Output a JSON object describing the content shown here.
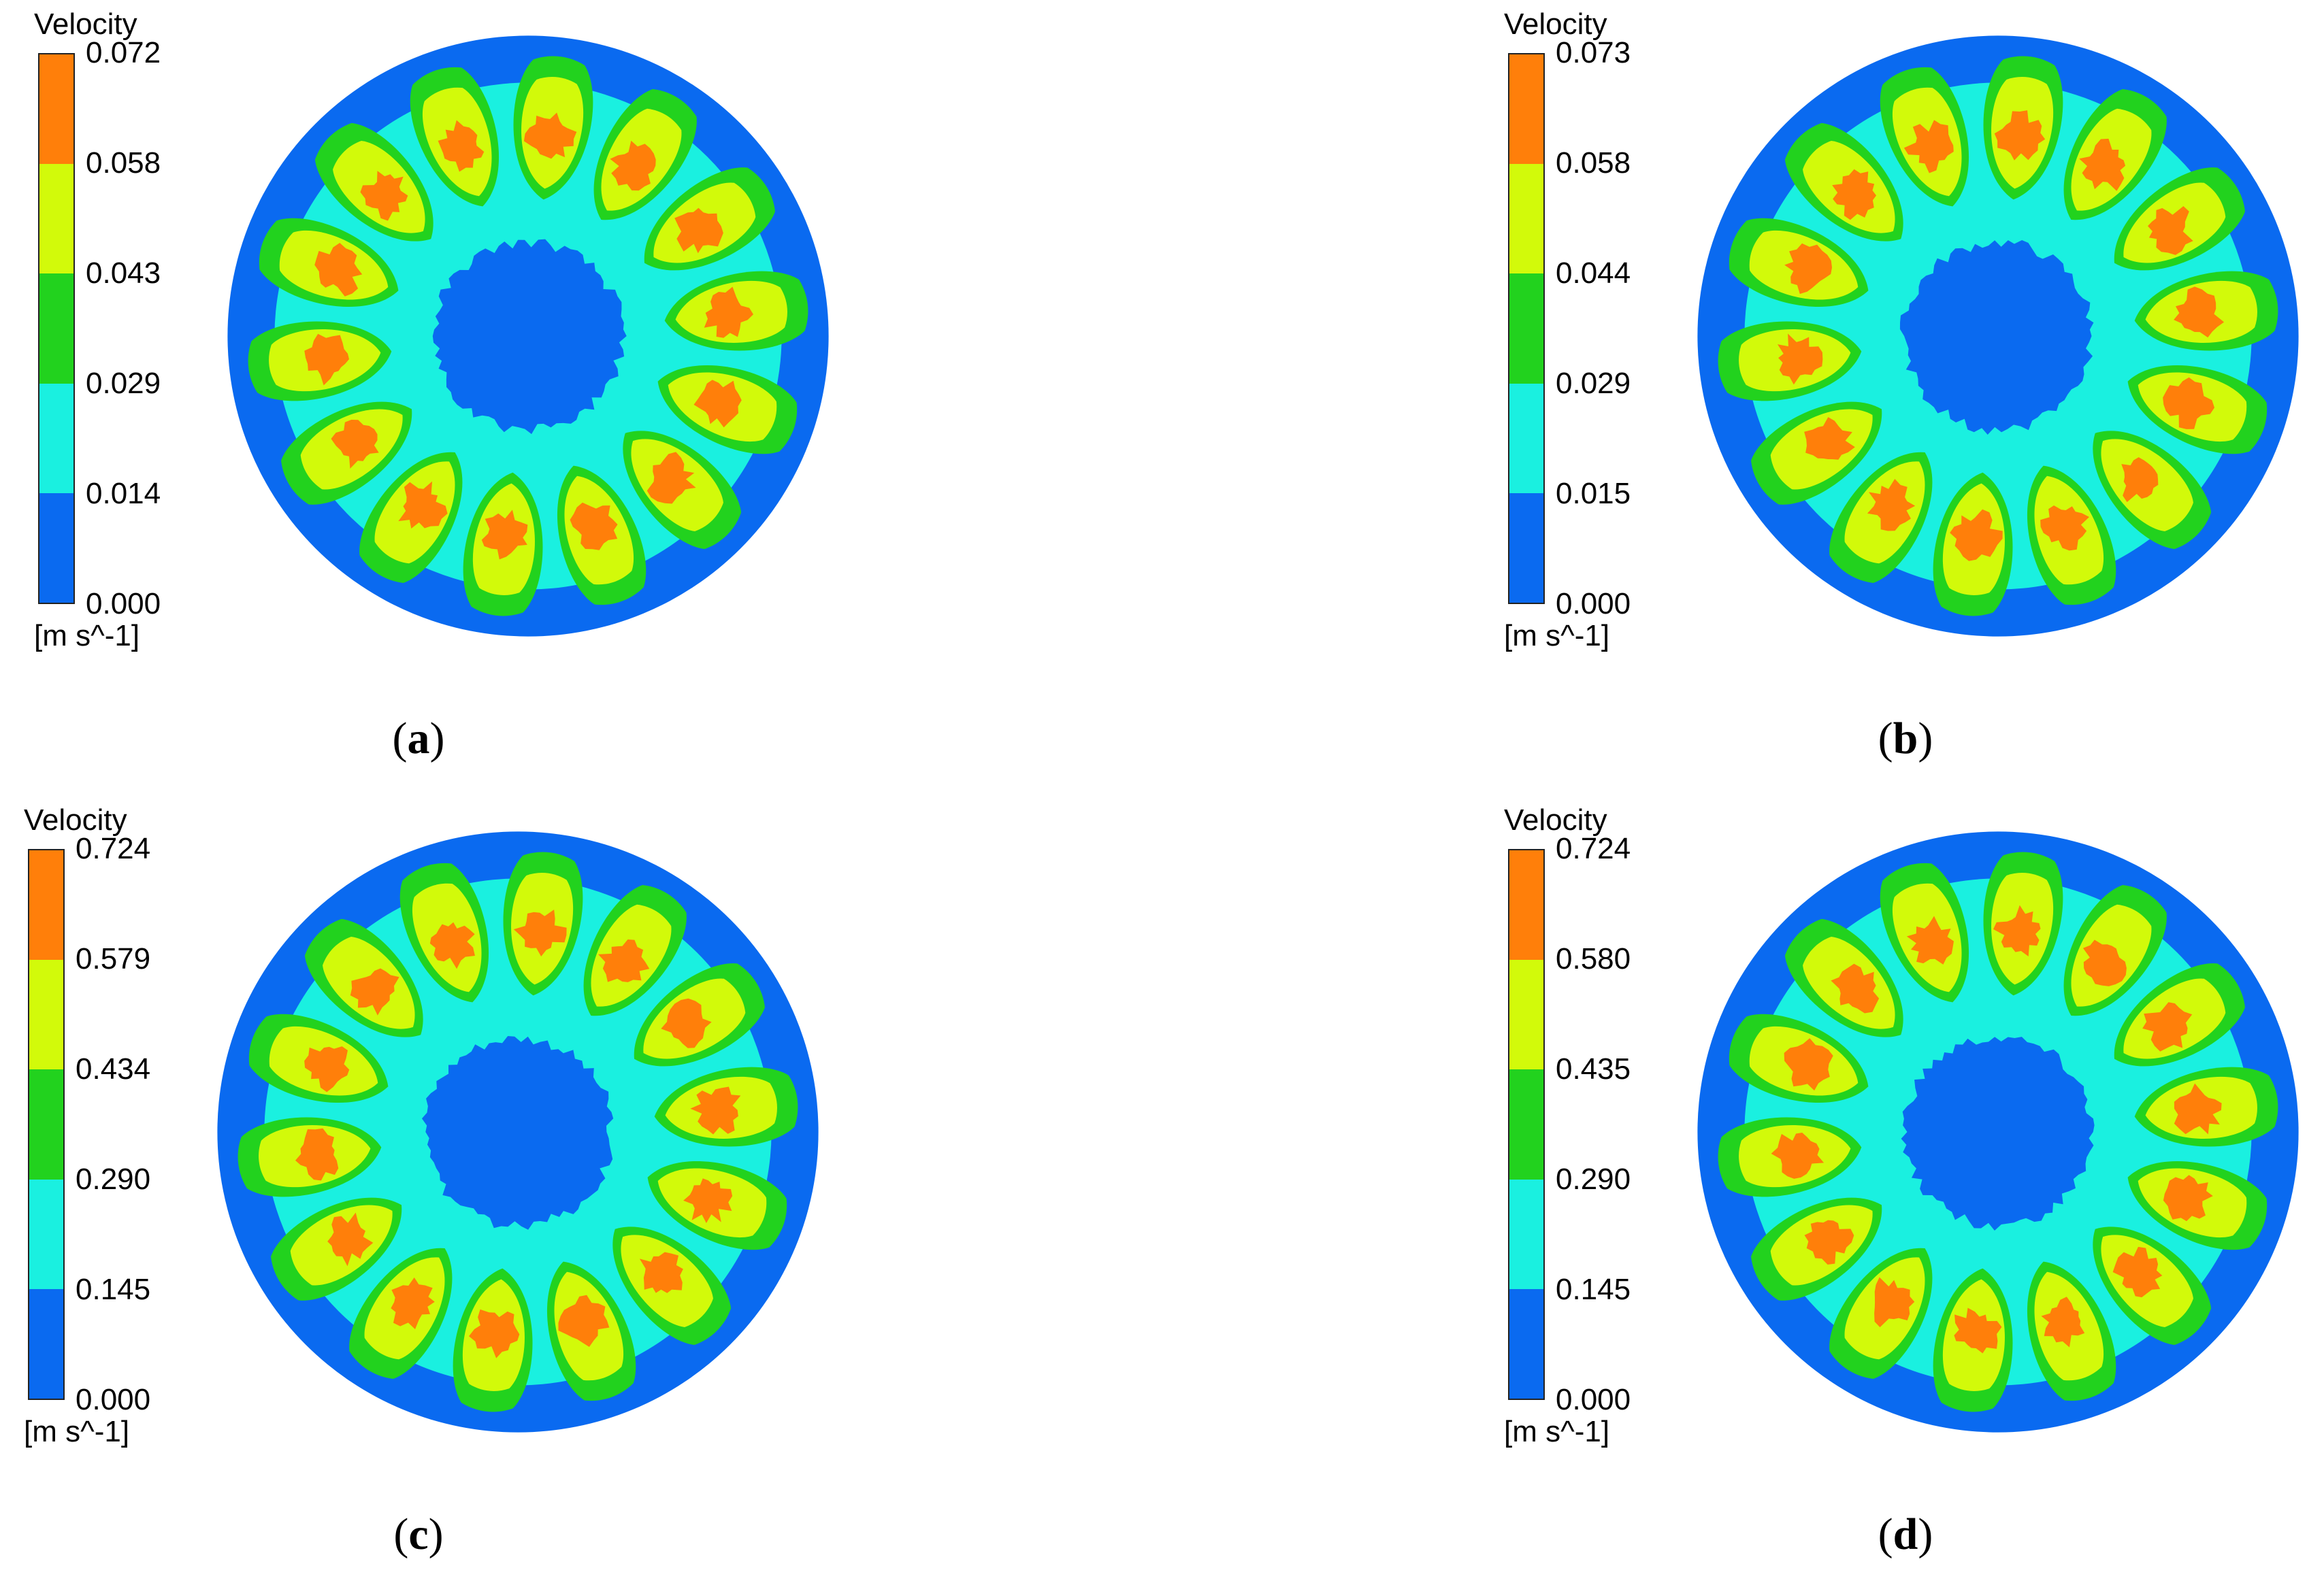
{
  "colors": {
    "blue": "#0a6af0",
    "cyan": "#1af0e0",
    "green": "#22d21e",
    "yellow": "#d2fa0a",
    "orange": "#ff7f0a"
  },
  "panels": [
    {
      "id": "a",
      "legend_title": "Velocity",
      "unit": "[m s^-1]",
      "ticks": [
        "0.072",
        "0.058",
        "0.043",
        "0.029",
        "0.014",
        "0.000"
      ],
      "caption_letter": "a"
    },
    {
      "id": "b",
      "legend_title": "Velocity",
      "unit": "[m s^-1]",
      "ticks": [
        "0.073",
        "0.058",
        "0.044",
        "0.029",
        "0.015",
        "0.000"
      ],
      "caption_letter": "b"
    },
    {
      "id": "c",
      "legend_title": "Velocity",
      "unit": "[m s^-1]",
      "ticks": [
        "0.724",
        "0.579",
        "0.434",
        "0.290",
        "0.145",
        "0.000"
      ],
      "caption_letter": "c"
    },
    {
      "id": "d",
      "legend_title": "Velocity",
      "unit": "[m s^-1]",
      "ticks": [
        "0.724",
        "0.580",
        "0.435",
        "0.290",
        "0.145",
        "0.000"
      ],
      "caption_letter": "d"
    }
  ]
}
